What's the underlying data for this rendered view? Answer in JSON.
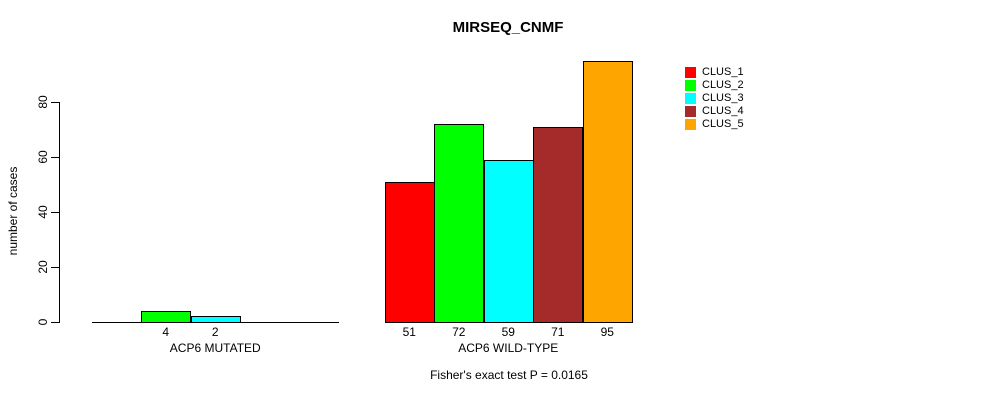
{
  "page": {
    "background": "#ffffff"
  },
  "chart_data": {
    "type": "bar",
    "title": "MIRSEQ_CNMF",
    "xlabel": "",
    "ylabel": "number of cases",
    "categories": [
      "ACP6 MUTATED",
      "ACP6 WILD-TYPE"
    ],
    "series": [
      {
        "name": "CLUS_1",
        "color": "#FF0000",
        "values": [
          0,
          51
        ]
      },
      {
        "name": "CLUS_2",
        "color": "#00FF00",
        "values": [
          4,
          72
        ]
      },
      {
        "name": "CLUS_3",
        "color": "#00FFFF",
        "values": [
          2,
          59
        ]
      },
      {
        "name": "CLUS_4",
        "color": "#A52A2A",
        "values": [
          0,
          71
        ]
      },
      {
        "name": "CLUS_5",
        "color": "#FFA500",
        "values": [
          0,
          95
        ]
      }
    ],
    "bar_labels": [
      [
        "",
        "4",
        "2",
        "",
        ""
      ],
      [
        "51",
        "72",
        "59",
        "71",
        "95"
      ]
    ],
    "ylim": [
      0,
      80
    ],
    "yticks": [
      0,
      20,
      40,
      60,
      80
    ],
    "grid": false,
    "legend_position": "top-right",
    "legend": [
      "CLUS_1",
      "CLUS_2",
      "CLUS_3",
      "CLUS_4",
      "CLUS_5"
    ],
    "annotation": "Fisher's exact test P = 0.0165",
    "axis_color": "#000000",
    "bar_border_color": "#000000"
  }
}
